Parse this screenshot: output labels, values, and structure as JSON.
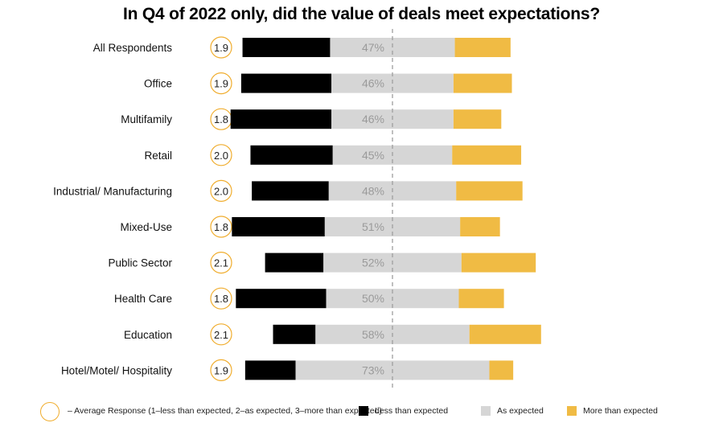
{
  "colors": {
    "less": "#000000",
    "as": "#d6d6d6",
    "more": "#f0bb44",
    "circle": "#f0ad2e",
    "pct_text": "#9a9a9a",
    "divider": "#9e9e9e"
  },
  "chart_data": {
    "type": "bar",
    "orientation": "horizontal",
    "stacked": "diverging",
    "title": "In Q4 of 2022 only, did the value of deals meet expectations?",
    "categories": [
      "All Respondents",
      "Office",
      "Multifamily",
      "Retail",
      "Industrial/ Manufacturing",
      "Mixed-Use",
      "Public Sector",
      "Health Care",
      "Education",
      "Hotel/Motel/ Hospitality"
    ],
    "average_response": [
      "1.9",
      "1.9",
      "1.8",
      "2.0",
      "2.0",
      "1.8",
      "2.1",
      "1.8",
      "2.1",
      "1.9"
    ],
    "series": [
      {
        "name": "Less than expected",
        "values": [
          33,
          34,
          38,
          31,
          29,
          35,
          22,
          34,
          16,
          19
        ]
      },
      {
        "name": "As expected",
        "values": [
          47,
          46,
          46,
          45,
          48,
          51,
          52,
          50,
          58,
          73
        ]
      },
      {
        "name": "More than expected",
        "values": [
          21,
          22,
          18,
          26,
          25,
          15,
          28,
          17,
          27,
          9
        ]
      }
    ],
    "as_expected_labels": [
      "47%",
      "46%",
      "46%",
      "45%",
      "48%",
      "51%",
      "52%",
      "50%",
      "58%",
      "73%"
    ],
    "units": "% of respondents"
  },
  "legend": {
    "circle_text": "– Average Response (1–less than expected, 2–as expected, 3–more than expected)",
    "less": "Less than expected",
    "as": "As expected",
    "more": "More than expected"
  }
}
